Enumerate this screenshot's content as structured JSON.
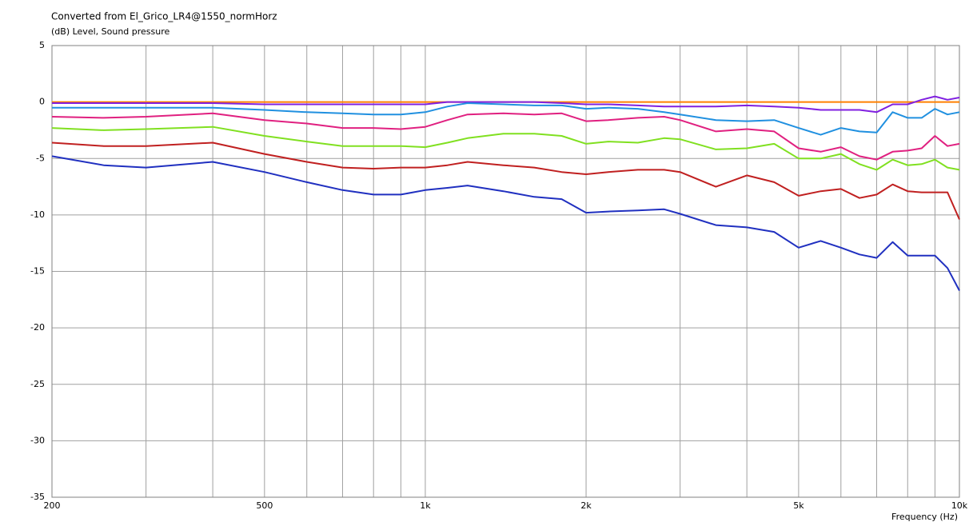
{
  "chart_data": {
    "type": "line",
    "title": "Converted from El_Grico_LR4@1550_normHorz",
    "ylabel": "(dB)  Level, Sound pressure",
    "xlabel": "Frequency (Hz)",
    "xscale": "log",
    "grid": true,
    "xlim": [
      200,
      10000
    ],
    "ylim": [
      -35,
      5
    ],
    "xticks": [
      200,
      500,
      {
        "value": 1000,
        "label": "1k"
      },
      {
        "value": 2000,
        "label": "2k"
      },
      {
        "value": 5000,
        "label": "5k"
      },
      {
        "value": 10000,
        "label": "10k"
      }
    ],
    "xminor": [
      300,
      400,
      600,
      700,
      800,
      900,
      3000,
      4000,
      6000,
      7000,
      8000,
      9000
    ],
    "yticks": [
      5,
      0,
      -5,
      -10,
      -15,
      -20,
      -25,
      -30,
      -35
    ],
    "x": [
      200,
      250,
      300,
      400,
      500,
      600,
      700,
      800,
      900,
      1000,
      1100,
      1200,
      1400,
      1600,
      1800,
      2000,
      2200,
      2500,
      2800,
      3000,
      3500,
      4000,
      4500,
      5000,
      5500,
      6000,
      6500,
      7000,
      7500,
      8000,
      8500,
      9000,
      9500,
      10000
    ],
    "series": [
      {
        "color": "#ff8000",
        "values": [
          0,
          0,
          0,
          0,
          0,
          0,
          0,
          0,
          0,
          0,
          0,
          0,
          0,
          0,
          0,
          0,
          0,
          0,
          0,
          0,
          0,
          0,
          0,
          0,
          0,
          0,
          0,
          0,
          0,
          0,
          0,
          0,
          0,
          0
        ]
      },
      {
        "color": "#8020e0",
        "values": [
          -0.1,
          -0.1,
          -0.1,
          -0.1,
          -0.2,
          -0.2,
          -0.2,
          -0.2,
          -0.2,
          -0.2,
          0,
          0,
          0,
          0,
          -0.1,
          -0.2,
          -0.2,
          -0.3,
          -0.4,
          -0.4,
          -0.4,
          -0.3,
          -0.4,
          -0.5,
          -0.7,
          -0.7,
          -0.7,
          -0.9,
          -0.2,
          -0.2,
          0.2,
          0.5,
          0.2,
          0.4
        ]
      },
      {
        "color": "#2090e0",
        "values": [
          -0.5,
          -0.5,
          -0.5,
          -0.5,
          -0.7,
          -0.9,
          -1.0,
          -1.1,
          -1.1,
          -0.9,
          -0.4,
          -0.1,
          -0.2,
          -0.3,
          -0.3,
          -0.6,
          -0.5,
          -0.6,
          -0.9,
          -1.1,
          -1.6,
          -1.7,
          -1.6,
          -2.3,
          -2.9,
          -2.3,
          -2.6,
          -2.7,
          -0.9,
          -1.4,
          -1.4,
          -0.6,
          -1.1,
          -0.9
        ]
      },
      {
        "color": "#e02080",
        "values": [
          -1.3,
          -1.4,
          -1.3,
          -1.0,
          -1.6,
          -1.9,
          -2.3,
          -2.3,
          -2.4,
          -2.2,
          -1.6,
          -1.1,
          -1.0,
          -1.1,
          -1.0,
          -1.7,
          -1.6,
          -1.4,
          -1.3,
          -1.6,
          -2.6,
          -2.4,
          -2.6,
          -4.1,
          -4.4,
          -4.0,
          -4.8,
          -5.1,
          -4.4,
          -4.3,
          -4.1,
          -3.0,
          -3.9,
          -3.7
        ]
      },
      {
        "color": "#80e020",
        "values": [
          -2.3,
          -2.5,
          -2.4,
          -2.2,
          -3.0,
          -3.5,
          -3.9,
          -3.9,
          -3.9,
          -4.0,
          -3.6,
          -3.2,
          -2.8,
          -2.8,
          -3.0,
          -3.7,
          -3.5,
          -3.6,
          -3.2,
          -3.3,
          -4.2,
          -4.1,
          -3.7,
          -5.0,
          -5.0,
          -4.6,
          -5.5,
          -6.0,
          -5.1,
          -5.6,
          -5.5,
          -5.1,
          -5.8,
          -6.0
        ]
      },
      {
        "color": "#c02020",
        "values": [
          -3.6,
          -3.9,
          -3.9,
          -3.6,
          -4.6,
          -5.3,
          -5.8,
          -5.9,
          -5.8,
          -5.8,
          -5.6,
          -5.3,
          -5.6,
          -5.8,
          -6.2,
          -6.4,
          -6.2,
          -6.0,
          -6.0,
          -6.2,
          -7.5,
          -6.5,
          -7.1,
          -8.3,
          -7.9,
          -7.7,
          -8.5,
          -8.2,
          -7.3,
          -7.9,
          -8.0,
          -8.0,
          -8.0,
          -10.4
        ]
      },
      {
        "color": "#2030c0",
        "values": [
          -4.8,
          -5.6,
          -5.8,
          -5.3,
          -6.2,
          -7.1,
          -7.8,
          -8.2,
          -8.2,
          -7.8,
          -7.6,
          -7.4,
          -7.9,
          -8.4,
          -8.6,
          -9.8,
          -9.7,
          -9.6,
          -9.5,
          -9.9,
          -10.9,
          -11.1,
          -11.5,
          -12.9,
          -12.3,
          -12.9,
          -13.5,
          -13.8,
          -12.4,
          -13.6,
          -13.6,
          -13.6,
          -14.7,
          -16.7
        ]
      }
    ]
  }
}
